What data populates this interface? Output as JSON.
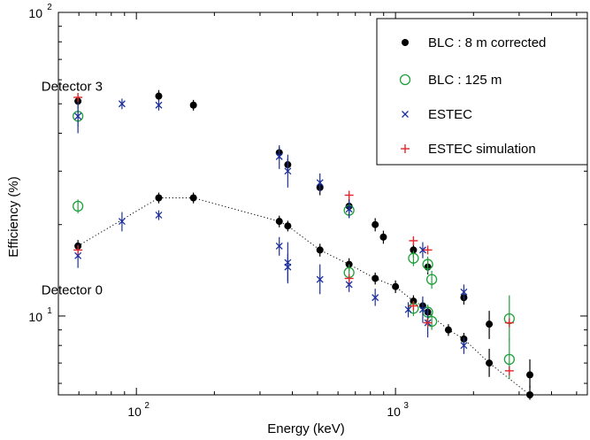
{
  "chart_data": {
    "type": "scatter",
    "xlabel": "Energy (keV)",
    "ylabel": "Efficiency (%)",
    "xscale": "log",
    "yscale": "log",
    "xlim": [
      50,
      5500
    ],
    "ylim": [
      5.5,
      100
    ],
    "x_ticks": [
      {
        "value": 100,
        "label": "10",
        "exp": "2"
      },
      {
        "value": 1000,
        "label": "10",
        "exp": "3"
      }
    ],
    "y_ticks": [
      {
        "value": 10,
        "label": "10",
        "exp": "1"
      },
      {
        "value": 100,
        "label": "10",
        "exp": "2"
      }
    ],
    "grid": false,
    "legend_position": "top-right",
    "annotations": [
      {
        "text": "Detector 3",
        "x": 43,
        "y": 57
      },
      {
        "text": "Detector 0",
        "x": 43,
        "y": 12.2
      }
    ],
    "series": [
      {
        "name": "BLC : 8 m corrected",
        "marker": "dot",
        "color": "#000000",
        "points": [
          {
            "x": 59.5,
            "y": 51,
            "lo": 49,
            "hi": 53
          },
          {
            "x": 122,
            "y": 53,
            "lo": 51,
            "hi": 55.5
          },
          {
            "x": 166,
            "y": 49.5,
            "lo": 47.5,
            "hi": 51.5
          },
          {
            "x": 356,
            "y": 34.5,
            "lo": 33,
            "hi": 36
          },
          {
            "x": 384,
            "y": 31.5,
            "lo": 30,
            "hi": 33
          },
          {
            "x": 511,
            "y": 26.5,
            "lo": 25,
            "hi": 28
          },
          {
            "x": 662,
            "y": 23,
            "lo": 21.8,
            "hi": 24.2
          },
          {
            "x": 835,
            "y": 20,
            "lo": 19,
            "hi": 21
          },
          {
            "x": 898,
            "y": 18.2,
            "lo": 17.3,
            "hi": 19.1
          },
          {
            "x": 1173,
            "y": 16.5,
            "lo": 15.6,
            "hi": 17.4
          },
          {
            "x": 1332,
            "y": 14.5,
            "lo": 13.7,
            "hi": 15.3
          },
          {
            "x": 1836,
            "y": 11.5,
            "lo": 10.9,
            "hi": 12.1
          },
          {
            "x": 59.5,
            "y": 17,
            "lo": 16.2,
            "hi": 17.8
          },
          {
            "x": 122,
            "y": 24.5,
            "lo": 23.5,
            "hi": 25.5
          },
          {
            "x": 166,
            "y": 24.5,
            "lo": 23.5,
            "hi": 25.5
          },
          {
            "x": 356,
            "y": 20.5,
            "lo": 19.6,
            "hi": 21.4
          },
          {
            "x": 384,
            "y": 19.8,
            "lo": 19,
            "hi": 20.6
          },
          {
            "x": 511,
            "y": 16.5,
            "lo": 15.7,
            "hi": 17.3
          },
          {
            "x": 662,
            "y": 14.8,
            "lo": 14.1,
            "hi": 15.5
          },
          {
            "x": 835,
            "y": 13.3,
            "lo": 12.7,
            "hi": 13.9
          },
          {
            "x": 1000,
            "y": 12.5,
            "lo": 11.9,
            "hi": 13.1
          },
          {
            "x": 1173,
            "y": 11.2,
            "lo": 10.7,
            "hi": 11.7
          },
          {
            "x": 1274,
            "y": 10.8,
            "lo": 10.3,
            "hi": 11.3
          },
          {
            "x": 1332,
            "y": 10.3,
            "lo": 9.8,
            "hi": 10.8
          },
          {
            "x": 1600,
            "y": 9.0,
            "lo": 8.6,
            "hi": 9.4
          },
          {
            "x": 1836,
            "y": 8.4,
            "lo": 8.0,
            "hi": 8.8
          },
          {
            "x": 2300,
            "y": 9.4,
            "lo": 8.4,
            "hi": 10.4
          },
          {
            "x": 2300,
            "y": 7.0,
            "lo": 6.3,
            "hi": 7.8
          },
          {
            "x": 3300,
            "y": 6.4,
            "lo": 5.8,
            "hi": 7.2
          },
          {
            "x": 3300,
            "y": 5.5,
            "lo": 5.3,
            "hi": 5.9
          }
        ]
      },
      {
        "name": "BLC : 125 m",
        "marker": "circle",
        "color": "#1fa03a",
        "points": [
          {
            "x": 59.5,
            "y": 45.5,
            "lo": 42,
            "hi": 49
          },
          {
            "x": 59.5,
            "y": 23,
            "lo": 21.8,
            "hi": 24.2
          },
          {
            "x": 662,
            "y": 22.3,
            "lo": 21,
            "hi": 23.6
          },
          {
            "x": 662,
            "y": 13.9,
            "lo": 13,
            "hi": 14.8
          },
          {
            "x": 1173,
            "y": 15.5,
            "lo": 14.6,
            "hi": 16.4
          },
          {
            "x": 1173,
            "y": 10.6,
            "lo": 10,
            "hi": 11.2
          },
          {
            "x": 1332,
            "y": 14.8,
            "lo": 13.9,
            "hi": 15.7
          },
          {
            "x": 1332,
            "y": 10.3,
            "lo": 9.7,
            "hi": 10.9
          },
          {
            "x": 1380,
            "y": 13.2,
            "lo": 12.3,
            "hi": 14.1
          },
          {
            "x": 1380,
            "y": 9.6,
            "lo": 9.0,
            "hi": 10.2
          },
          {
            "x": 2750,
            "y": 9.8,
            "lo": 8.3,
            "hi": 11.7
          },
          {
            "x": 2750,
            "y": 7.2,
            "lo": 6.2,
            "hi": 8.4
          }
        ]
      },
      {
        "name": "ESTEC",
        "marker": "x",
        "color": "#1c2f9c",
        "points": [
          {
            "x": 59.5,
            "y": 45.5,
            "lo": 40,
            "hi": 51
          },
          {
            "x": 88,
            "y": 50,
            "lo": 48,
            "hi": 52
          },
          {
            "x": 122,
            "y": 49.5,
            "lo": 47.5,
            "hi": 51.5
          },
          {
            "x": 356,
            "y": 33.5,
            "lo": 30.5,
            "hi": 36.5
          },
          {
            "x": 384,
            "y": 30,
            "lo": 26.5,
            "hi": 34
          },
          {
            "x": 511,
            "y": 27.5,
            "lo": 25.5,
            "hi": 29.5
          },
          {
            "x": 662,
            "y": 22.5,
            "lo": 21,
            "hi": 24
          },
          {
            "x": 59.5,
            "y": 15.8,
            "lo": 14.4,
            "hi": 17.2
          },
          {
            "x": 88,
            "y": 20.5,
            "lo": 19,
            "hi": 22
          },
          {
            "x": 122,
            "y": 21.5,
            "lo": 20.7,
            "hi": 22.3
          },
          {
            "x": 356,
            "y": 17,
            "lo": 15.8,
            "hi": 18.2
          },
          {
            "x": 384,
            "y": 15,
            "lo": 12.8,
            "hi": 17.5
          },
          {
            "x": 384,
            "y": 14.5,
            "lo": 13,
            "hi": 16
          },
          {
            "x": 511,
            "y": 13.2,
            "lo": 11.8,
            "hi": 14.8
          },
          {
            "x": 662,
            "y": 12.7,
            "lo": 12,
            "hi": 13.4
          },
          {
            "x": 835,
            "y": 11.5,
            "lo": 10.8,
            "hi": 12.3
          },
          {
            "x": 1120,
            "y": 10.5,
            "lo": 9.9,
            "hi": 11.1
          },
          {
            "x": 1274,
            "y": 16.5,
            "lo": 15.5,
            "hi": 17.5
          },
          {
            "x": 1274,
            "y": 10.5,
            "lo": 9.5,
            "hi": 11.6
          },
          {
            "x": 1332,
            "y": 9.5,
            "lo": 8.5,
            "hi": 10.6
          },
          {
            "x": 1836,
            "y": 12,
            "lo": 11.3,
            "hi": 12.7
          },
          {
            "x": 1836,
            "y": 8.0,
            "lo": 7.5,
            "hi": 8.5
          }
        ]
      },
      {
        "name": "ESTEC simulation",
        "marker": "plus",
        "color": "#e8242a",
        "points": [
          {
            "x": 59.5,
            "y": 52.5
          },
          {
            "x": 59.5,
            "y": 16.5
          },
          {
            "x": 662,
            "y": 25
          },
          {
            "x": 662,
            "y": 13.3
          },
          {
            "x": 1173,
            "y": 17.7
          },
          {
            "x": 1173,
            "y": 10.8
          },
          {
            "x": 1332,
            "y": 16.5
          },
          {
            "x": 1332,
            "y": 9.5
          },
          {
            "x": 2750,
            "y": 9.5
          },
          {
            "x": 2750,
            "y": 6.6
          }
        ]
      }
    ],
    "trend_line": {
      "style": "dotted",
      "color": "#000000",
      "points": [
        {
          "x": 59.5,
          "y": 17
        },
        {
          "x": 122,
          "y": 24.5
        },
        {
          "x": 166,
          "y": 24.5
        },
        {
          "x": 356,
          "y": 20.5
        },
        {
          "x": 384,
          "y": 19.8
        },
        {
          "x": 511,
          "y": 16.5
        },
        {
          "x": 662,
          "y": 14.8
        },
        {
          "x": 835,
          "y": 13.3
        },
        {
          "x": 1000,
          "y": 12.5
        },
        {
          "x": 1173,
          "y": 11.2
        },
        {
          "x": 1274,
          "y": 10.8
        },
        {
          "x": 1332,
          "y": 10.3
        },
        {
          "x": 1600,
          "y": 9.0
        },
        {
          "x": 1836,
          "y": 8.4
        },
        {
          "x": 2300,
          "y": 7.0
        },
        {
          "x": 3300,
          "y": 5.5
        }
      ]
    }
  }
}
